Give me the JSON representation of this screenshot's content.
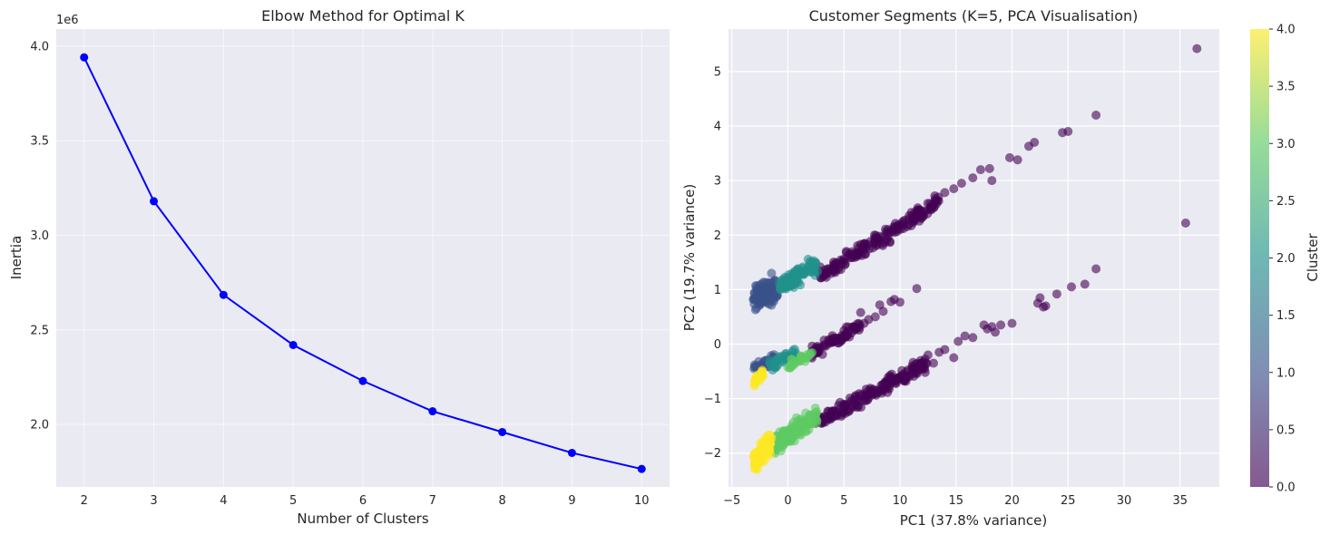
{
  "chart_data": [
    {
      "type": "line",
      "title": "Elbow Method for Optimal K",
      "xlabel": "Number of Clusters",
      "ylabel": "Inertia",
      "y_offset_label": "1e6",
      "x": [
        2,
        3,
        4,
        5,
        6,
        7,
        8,
        9,
        10
      ],
      "series": [
        {
          "values": [
            3940000,
            3180000,
            2685000,
            2420000,
            2230000,
            2070000,
            1960000,
            1850000,
            1765000
          ],
          "color": "#0000ff"
        }
      ],
      "xlim": [
        1.6,
        10.4
      ],
      "ylim": [
        1.67,
        4.09
      ],
      "xticks": [
        2,
        3,
        4,
        5,
        6,
        7,
        8,
        9,
        10
      ],
      "yticks": [
        2.0,
        2.5,
        3.0,
        3.5,
        4.0
      ],
      "ytick_labels": [
        "2.0",
        "2.5",
        "3.0",
        "3.5",
        "4.0"
      ],
      "grid": true,
      "background": "#eaeaf2"
    },
    {
      "type": "scatter",
      "title": "Customer Segments (K=5, PCA Visualisation)",
      "xlabel": "PC1 (37.8% variance)",
      "ylabel": "PC2 (19.7% variance)",
      "xlim": [
        -5.3,
        38.5
      ],
      "ylim": [
        -2.62,
        5.78
      ],
      "xticks": [
        -5,
        0,
        5,
        10,
        15,
        20,
        25,
        30,
        35
      ],
      "yticks": [
        -2,
        -1,
        0,
        1,
        2,
        3,
        4,
        5
      ],
      "grid": true,
      "background": "#eaeaf2",
      "colormap": "viridis",
      "point_alpha": 0.6,
      "clusters": [
        {
          "cluster": 0,
          "color": "#440154",
          "segments": [
            {
              "x0": 2.8,
              "y0": 1.25,
              "x1": 13.5,
              "y1": 2.6,
              "n": 180,
              "jitter": 0.07
            },
            {
              "x0": 2.5,
              "y0": -1.45,
              "x1": 12.5,
              "y1": -0.35,
              "n": 180,
              "jitter": 0.07
            },
            {
              "x0": 2.0,
              "y0": -0.2,
              "x1": 6.5,
              "y1": 0.35,
              "n": 70,
              "jitter": 0.06
            }
          ],
          "outliers": [
            [
              36.5,
              5.42
            ],
            [
              27.5,
              4.2
            ],
            [
              35.5,
              2.22
            ],
            [
              27.5,
              1.38
            ],
            [
              25.0,
              3.9
            ],
            [
              24.5,
              3.88
            ],
            [
              22.0,
              3.7
            ],
            [
              21.5,
              3.63
            ],
            [
              20.5,
              3.38
            ],
            [
              19.8,
              3.42
            ],
            [
              18.2,
              3.0
            ],
            [
              18.0,
              3.22
            ],
            [
              17.2,
              3.2
            ],
            [
              16.5,
              3.05
            ],
            [
              15.5,
              2.95
            ],
            [
              14.8,
              2.85
            ],
            [
              14.0,
              2.78
            ],
            [
              26.5,
              1.1
            ],
            [
              25.3,
              1.05
            ],
            [
              24.0,
              0.92
            ],
            [
              23.0,
              0.7
            ],
            [
              22.5,
              0.85
            ],
            [
              22.3,
              0.75
            ],
            [
              22.8,
              0.68
            ],
            [
              20.0,
              0.38
            ],
            [
              19.0,
              0.35
            ],
            [
              18.2,
              0.32
            ],
            [
              17.5,
              0.35
            ],
            [
              18.5,
              0.22
            ],
            [
              17.8,
              0.28
            ],
            [
              16.5,
              0.12
            ],
            [
              15.8,
              0.15
            ],
            [
              15.2,
              0.05
            ],
            [
              14.8,
              -0.25
            ],
            [
              11.5,
              1.02
            ],
            [
              10.0,
              0.77
            ],
            [
              9.5,
              0.82
            ],
            [
              9.2,
              0.78
            ],
            [
              8.5,
              0.6
            ],
            [
              8.2,
              0.72
            ],
            [
              7.8,
              0.5
            ],
            [
              7.2,
              0.45
            ],
            [
              6.5,
              0.58
            ],
            [
              6.8,
              0.38
            ],
            [
              13.0,
              -0.35
            ],
            [
              12.5,
              -0.2
            ],
            [
              14.0,
              -0.1
            ],
            [
              13.5,
              -0.15
            ]
          ]
        },
        {
          "cluster": 1,
          "color": "#3b528b",
          "segments": [
            {
              "x0": -3.0,
              "y0": 0.8,
              "x1": -1.0,
              "y1": 1.05,
              "n": 140,
              "jitter": 0.12
            },
            {
              "x0": -3.0,
              "y0": -0.45,
              "x1": -1.2,
              "y1": -0.25,
              "n": 40,
              "jitter": 0.05
            }
          ],
          "outliers": []
        },
        {
          "cluster": 2,
          "color": "#21918c",
          "segments": [
            {
              "x0": -0.8,
              "y0": 1.05,
              "x1": 2.6,
              "y1": 1.45,
              "n": 110,
              "jitter": 0.07
            },
            {
              "x0": -1.6,
              "y0": -0.4,
              "x1": 0.8,
              "y1": -0.12,
              "n": 35,
              "jitter": 0.05
            }
          ],
          "outliers": []
        },
        {
          "cluster": 3,
          "color": "#5ec962",
          "segments": [
            {
              "x0": -1.5,
              "y0": -1.9,
              "x1": 2.6,
              "y1": -1.3,
              "n": 140,
              "jitter": 0.09
            },
            {
              "x0": 0.0,
              "y0": -0.4,
              "x1": 2.2,
              "y1": -0.15,
              "n": 30,
              "jitter": 0.05
            }
          ],
          "outliers": []
        },
        {
          "cluster": 4,
          "color": "#fde725",
          "segments": [
            {
              "x0": -3.0,
              "y0": -2.15,
              "x1": -1.5,
              "y1": -1.8,
              "n": 120,
              "jitter": 0.1
            },
            {
              "x0": -3.0,
              "y0": -0.68,
              "x1": -2.2,
              "y1": -0.52,
              "n": 30,
              "jitter": 0.04
            }
          ],
          "outliers": []
        }
      ],
      "colorbar": {
        "label": "Cluster",
        "range": [
          0.0,
          4.0
        ],
        "ticks": [
          0.0,
          0.5,
          1.0,
          1.5,
          2.0,
          2.5,
          3.0,
          3.5,
          4.0
        ],
        "tick_labels": [
          "0.0",
          "0.5",
          "1.0",
          "1.5",
          "2.0",
          "2.5",
          "3.0",
          "3.5",
          "4.0"
        ]
      }
    }
  ]
}
